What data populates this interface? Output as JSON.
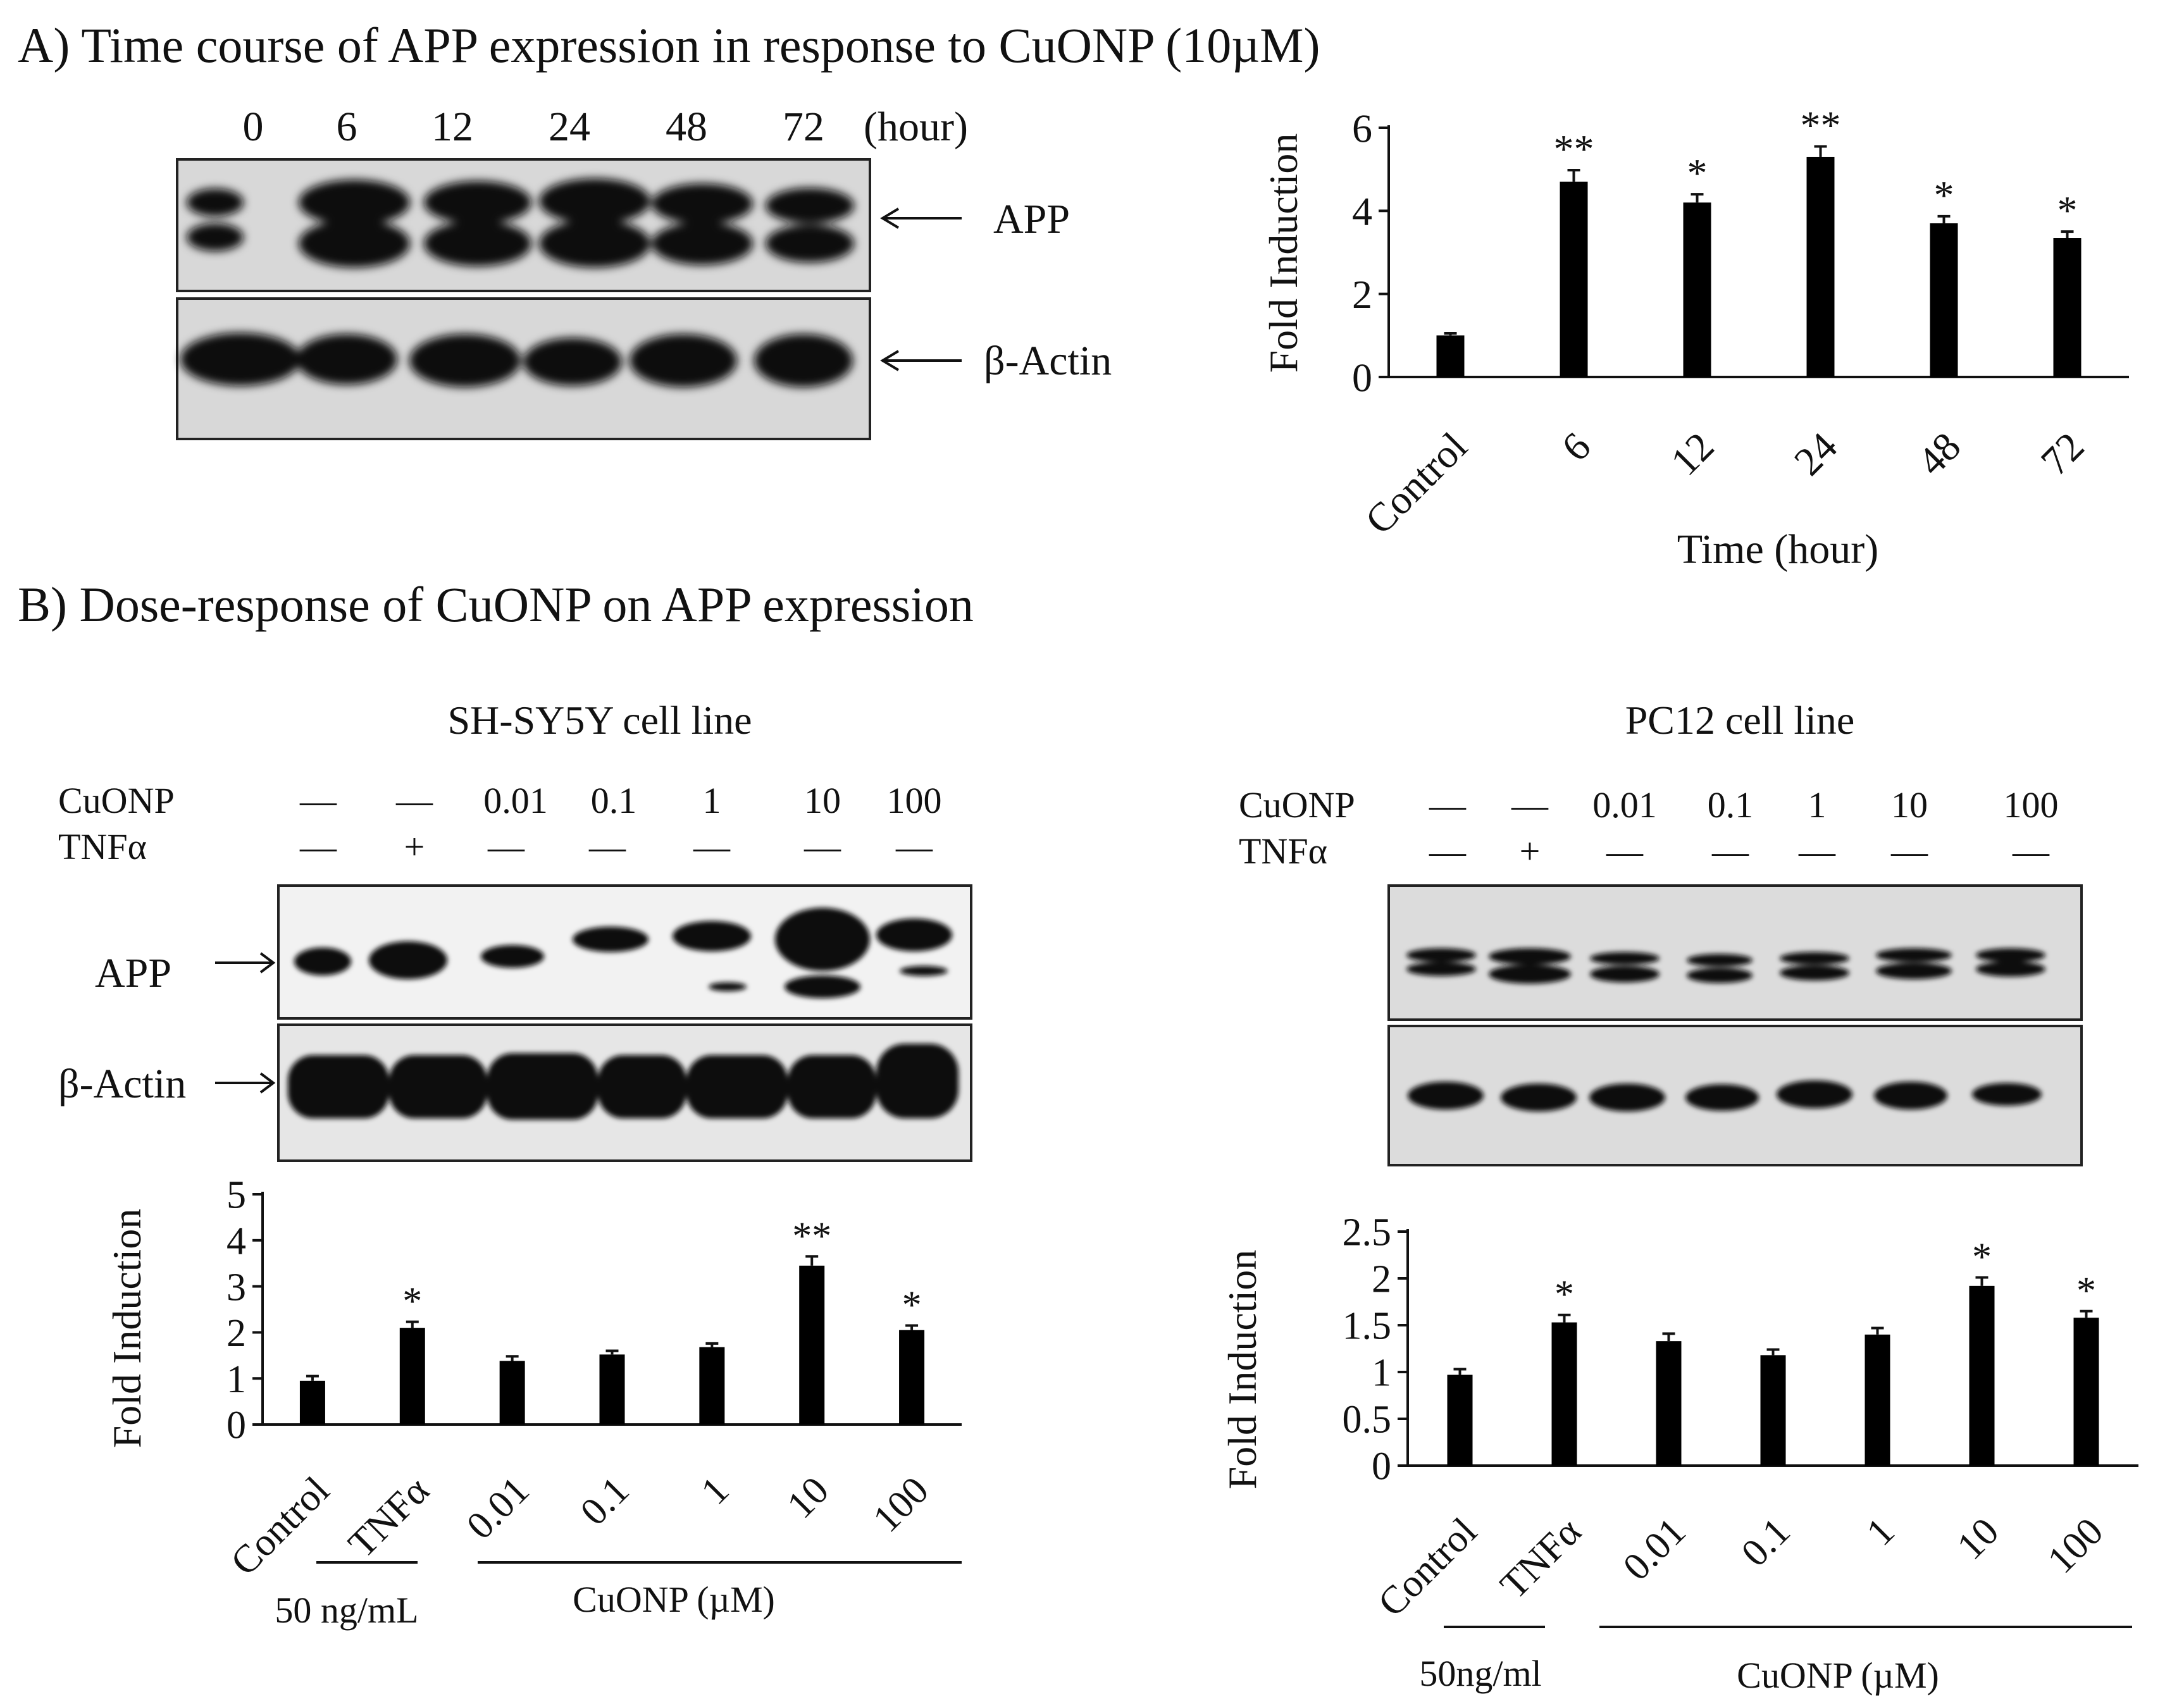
{
  "panel_a": {
    "title": "A) Time course of APP expression in response to CuONP (10µM)",
    "blot": {
      "lanes": [
        "0",
        "6",
        "12",
        "24",
        "48",
        "72"
      ],
      "unit": "(hour)",
      "labels": [
        "APP",
        "β-Actin"
      ]
    }
  },
  "panel_b": {
    "title": "B) Dose-response of CuONP  on APP expression",
    "sh": {
      "cell_line": "SH-SY5Y cell line",
      "row_labels": [
        "CuONP",
        "TNFα"
      ],
      "cuonp_row": [
        "—",
        "—",
        "0.01",
        "0.1",
        "1",
        "10",
        "100"
      ],
      "tnf_row": [
        "—",
        "+",
        "—",
        "—",
        "—",
        "—",
        "—"
      ],
      "blot_labels": [
        "APP",
        "β-Actin"
      ],
      "group_labels": [
        "50 ng/mL",
        "CuONP (µM)"
      ]
    },
    "pc": {
      "cell_line": "PC12 cell line",
      "row_labels": [
        "CuONP",
        "TNFα"
      ],
      "cuonp_row": [
        "—",
        "—",
        "0.01",
        "0.1",
        "1",
        "10",
        "100"
      ],
      "tnf_row": [
        "—",
        "+",
        "—",
        "—",
        "—",
        "—",
        "—"
      ],
      "group_labels": [
        "50ng/ml",
        "CuONP (µM)"
      ]
    }
  },
  "chart_data": [
    {
      "id": "chartA",
      "type": "bar",
      "title": "",
      "xlabel": "Time (hour)",
      "ylabel": "Fold Induction",
      "ylim": [
        0,
        6
      ],
      "yticks": [
        "0",
        "2",
        "4",
        "6"
      ],
      "categories": [
        "Control",
        "6",
        "12",
        "24",
        "48",
        "72"
      ],
      "values": [
        1.0,
        4.7,
        4.2,
        5.3,
        3.7,
        3.35
      ],
      "errors": [
        0.05,
        0.28,
        0.2,
        0.25,
        0.17,
        0.15
      ],
      "significance": [
        "",
        "**",
        "*",
        "**",
        "*",
        "*"
      ],
      "color": "#000000"
    },
    {
      "id": "chartB1",
      "type": "bar",
      "title": "",
      "xlabel": "",
      "ylabel": "Fold Induction",
      "ylim": [
        0,
        5
      ],
      "yticks": [
        "0",
        "1",
        "2",
        "3",
        "4",
        "5"
      ],
      "categories": [
        "Control",
        "TNFα",
        "0.01",
        "0.1",
        "1",
        "10",
        "100"
      ],
      "values": [
        0.95,
        2.1,
        1.38,
        1.52,
        1.68,
        3.45,
        2.05
      ],
      "errors": [
        0.1,
        0.13,
        0.1,
        0.08,
        0.08,
        0.2,
        0.1
      ],
      "significance": [
        "",
        "*",
        "",
        "",
        "",
        "**",
        "*"
      ],
      "color": "#000000"
    },
    {
      "id": "chartB2",
      "type": "bar",
      "title": "",
      "xlabel": "",
      "ylabel": "Fold Induction",
      "ylim": [
        0,
        2.5
      ],
      "yticks": [
        "0",
        "0.5",
        "1",
        "1.5",
        "2",
        "2.5"
      ],
      "categories": [
        "Control",
        "TNFα",
        "0.01",
        "0.1",
        "1",
        "10",
        "100"
      ],
      "values": [
        0.97,
        1.53,
        1.33,
        1.18,
        1.4,
        1.92,
        1.58
      ],
      "errors": [
        0.06,
        0.08,
        0.08,
        0.06,
        0.07,
        0.09,
        0.07
      ],
      "significance": [
        "",
        "*",
        "",
        "",
        "",
        "*",
        "*"
      ],
      "color": "#000000"
    }
  ]
}
